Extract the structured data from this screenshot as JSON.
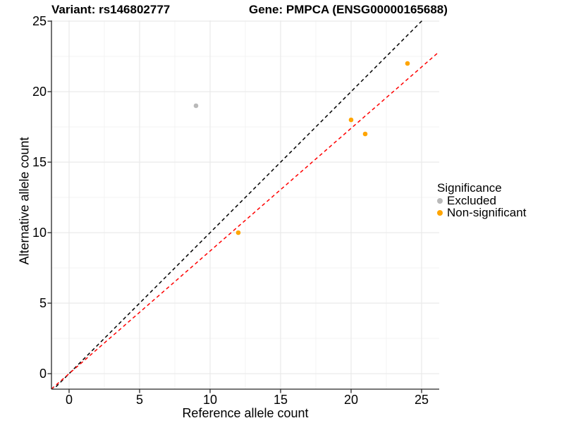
{
  "chart_data": {
    "type": "scatter",
    "titles": {
      "left": "Variant: rs146802777",
      "right": "Gene: PMPCA (ENSG00000165688)"
    },
    "xlabel": "Reference allele count",
    "ylabel": "Alternative allele count",
    "xlim": [
      -1.25,
      26.25
    ],
    "ylim": [
      -1.25,
      25.05
    ],
    "x_ticks": [
      0,
      5,
      10,
      15,
      20,
      25
    ],
    "y_ticks": [
      0,
      5,
      10,
      15,
      20,
      25
    ],
    "x_minor_ticks": [
      2.5,
      7.5,
      12.5,
      17.5,
      22.5
    ],
    "y_minor_ticks": [
      2.5,
      7.5,
      12.5,
      17.5,
      22.5
    ],
    "grid": {
      "major_color": "#E6E6E6",
      "minor_color": "#F3F3F3"
    },
    "axis_color": "#262626",
    "series": [
      {
        "name": "Excluded",
        "color": "#B9B9B9",
        "points": [
          {
            "x": 9,
            "y": 19
          }
        ]
      },
      {
        "name": "Non-significant",
        "color": "#FFA500",
        "points": [
          {
            "x": 12,
            "y": 10
          },
          {
            "x": 20,
            "y": 18
          },
          {
            "x": 21,
            "y": 17
          },
          {
            "x": 24,
            "y": 22
          }
        ]
      }
    ],
    "lines": [
      {
        "name": "identity-line",
        "slope": 1.0,
        "intercept": 0,
        "color": "#000000",
        "style": "dashed"
      },
      {
        "name": "fit-line",
        "slope": 0.87,
        "intercept": 0,
        "color": "#FF0000",
        "style": "dashed"
      }
    ],
    "legend": {
      "title": "Significance",
      "position": "right",
      "items": [
        {
          "label": "Excluded",
          "color": "#B9B9B9"
        },
        {
          "label": "Non-significant",
          "color": "#FFA500"
        }
      ]
    }
  }
}
